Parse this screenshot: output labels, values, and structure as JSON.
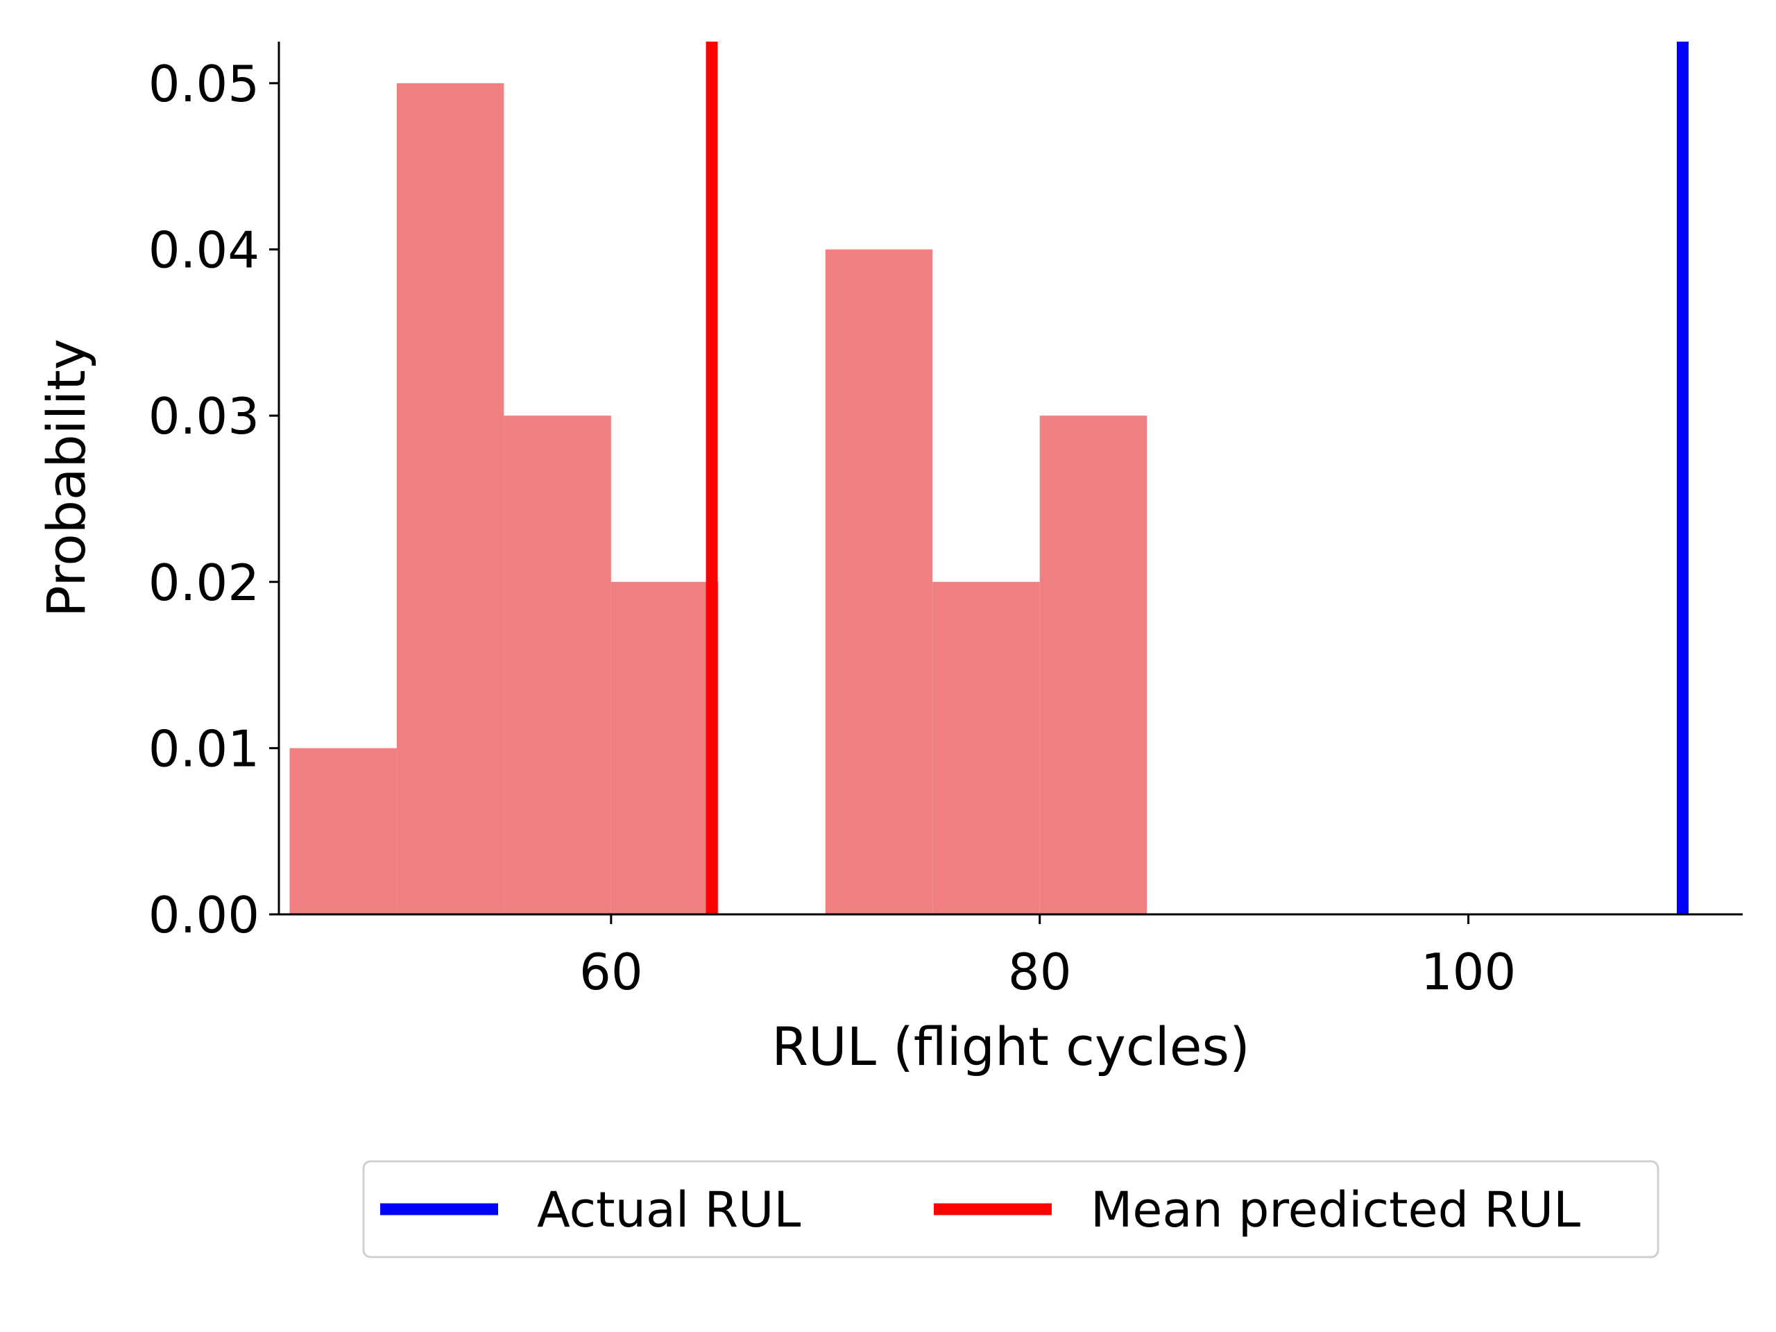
{
  "chart_data": {
    "type": "bar",
    "title": "",
    "xlabel": "RUL (flight cycles)",
    "ylabel": "Probability",
    "xlim": [
      44.5,
      112.8
    ],
    "ylim": [
      0,
      0.0525
    ],
    "xticks": [
      60,
      80,
      100
    ],
    "xtick_labels": [
      "60",
      "80",
      "100"
    ],
    "yticks": [
      0,
      0.01,
      0.02,
      0.03,
      0.04,
      0.05
    ],
    "ytick_labels": [
      "0.00",
      "0.01",
      "0.02",
      "0.03",
      "0.04",
      "0.05"
    ],
    "grid": false,
    "bins": [
      {
        "start": 45,
        "end": 50,
        "value": 0.01
      },
      {
        "start": 50,
        "end": 55,
        "value": 0.05
      },
      {
        "start": 55,
        "end": 60,
        "value": 0.03
      },
      {
        "start": 60,
        "end": 65,
        "value": 0.02
      },
      {
        "start": 65,
        "end": 70,
        "value": 0.0
      },
      {
        "start": 70,
        "end": 75,
        "value": 0.04
      },
      {
        "start": 75,
        "end": 80,
        "value": 0.02
      },
      {
        "start": 80,
        "end": 85,
        "value": 0.03
      }
    ],
    "bar_color": "#f08080",
    "vlines": [
      {
        "name": "Actual RUL",
        "x": 110,
        "color": "#0000ff"
      },
      {
        "name": "Mean predicted RUL",
        "x": 64.7,
        "color": "#ff0000"
      }
    ],
    "legend": {
      "placement": "below-center",
      "entries": [
        "Actual RUL",
        "Mean predicted RUL"
      ]
    }
  }
}
